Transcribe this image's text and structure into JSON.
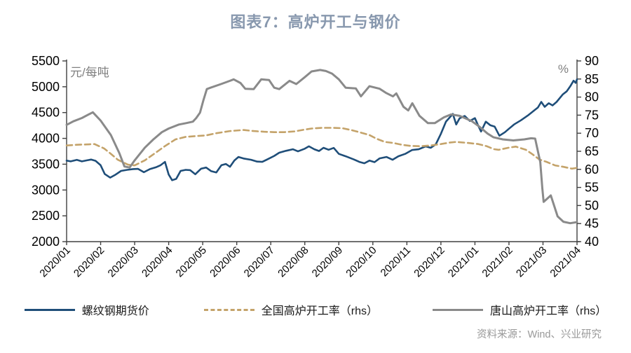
{
  "title": "图表7：高炉开工与钢价",
  "source": "资料来源：Wind、兴业研究",
  "colors": {
    "title": "#8898AE",
    "rebar": "#1F4E79",
    "national": "#C4A36A",
    "tangshan": "#8A8A8A",
    "axis": "#404040",
    "tick_text": "#000000",
    "unit_text": "#808080",
    "source_text": "#999999"
  },
  "chart_data": {
    "type": "line",
    "title": "图表7：高炉开工与钢价",
    "legend_position": "bottom",
    "grid": false,
    "x_axis": {
      "tick_labels": [
        "2020/01",
        "2020/02",
        "2020/03",
        "2020/04",
        "2020/05",
        "2020/06",
        "2020/07",
        "2020/08",
        "2020/09",
        "2020/10",
        "2020/11",
        "2020/12",
        "2021/01",
        "2021/02",
        "2021/03",
        "2021/04"
      ],
      "unit_months": true
    },
    "left_axis": {
      "label": "元/每吨",
      "min": 2000,
      "max": 5500,
      "step": 500,
      "ticks": [
        2000,
        2500,
        3000,
        3500,
        4000,
        4500,
        5000,
        5500
      ]
    },
    "right_axis": {
      "label": "%",
      "min": 40,
      "max": 90,
      "step": 5,
      "ticks": [
        40,
        45,
        50,
        55,
        60,
        65,
        70,
        75,
        80,
        85,
        90
      ]
    },
    "series": [
      {
        "name": "螺纹钢期货价",
        "axis": "left",
        "style": "solid",
        "color": "#1F4E79",
        "width": 2.6,
        "points": [
          [
            0,
            3570
          ],
          [
            0.12,
            3555
          ],
          [
            0.3,
            3585
          ],
          [
            0.45,
            3555
          ],
          [
            0.6,
            3575
          ],
          [
            0.72,
            3590
          ],
          [
            0.85,
            3565
          ],
          [
            1.0,
            3480
          ],
          [
            1.12,
            3310
          ],
          [
            1.28,
            3240
          ],
          [
            1.42,
            3290
          ],
          [
            1.6,
            3370
          ],
          [
            1.78,
            3390
          ],
          [
            1.95,
            3405
          ],
          [
            2.1,
            3410
          ],
          [
            2.27,
            3345
          ],
          [
            2.45,
            3405
          ],
          [
            2.62,
            3440
          ],
          [
            2.76,
            3480
          ],
          [
            2.89,
            3545
          ],
          [
            3.0,
            3300
          ],
          [
            3.1,
            3190
          ],
          [
            3.22,
            3215
          ],
          [
            3.35,
            3370
          ],
          [
            3.5,
            3390
          ],
          [
            3.63,
            3385
          ],
          [
            3.78,
            3305
          ],
          [
            3.95,
            3412
          ],
          [
            4.1,
            3435
          ],
          [
            4.25,
            3365
          ],
          [
            4.4,
            3340
          ],
          [
            4.55,
            3480
          ],
          [
            4.68,
            3505
          ],
          [
            4.8,
            3450
          ],
          [
            4.93,
            3572
          ],
          [
            5.05,
            3640
          ],
          [
            5.2,
            3610
          ],
          [
            5.42,
            3586
          ],
          [
            5.6,
            3550
          ],
          [
            5.75,
            3545
          ],
          [
            5.92,
            3600
          ],
          [
            6.1,
            3660
          ],
          [
            6.25,
            3723
          ],
          [
            6.45,
            3760
          ],
          [
            6.65,
            3790
          ],
          [
            6.8,
            3748
          ],
          [
            7.0,
            3800
          ],
          [
            7.12,
            3846
          ],
          [
            7.28,
            3790
          ],
          [
            7.42,
            3755
          ],
          [
            7.55,
            3818
          ],
          [
            7.7,
            3780
          ],
          [
            7.85,
            3815
          ],
          [
            8.0,
            3700
          ],
          [
            8.2,
            3654
          ],
          [
            8.45,
            3590
          ],
          [
            8.6,
            3545
          ],
          [
            8.75,
            3518
          ],
          [
            8.9,
            3570
          ],
          [
            9.05,
            3540
          ],
          [
            9.2,
            3613
          ],
          [
            9.4,
            3640
          ],
          [
            9.58,
            3586
          ],
          [
            9.75,
            3654
          ],
          [
            9.95,
            3700
          ],
          [
            10.15,
            3775
          ],
          [
            10.35,
            3790
          ],
          [
            10.55,
            3845
          ],
          [
            10.7,
            3818
          ],
          [
            10.85,
            3885
          ],
          [
            11.0,
            4090
          ],
          [
            11.15,
            4325
          ],
          [
            11.35,
            4475
          ],
          [
            11.45,
            4270
          ],
          [
            11.55,
            4390
          ],
          [
            11.7,
            4434
          ],
          [
            11.85,
            4338
          ],
          [
            12.0,
            4392
          ],
          [
            12.08,
            4270
          ],
          [
            12.18,
            4133
          ],
          [
            12.32,
            4324
          ],
          [
            12.45,
            4256
          ],
          [
            12.58,
            4229
          ],
          [
            12.72,
            4051
          ],
          [
            12.88,
            4119
          ],
          [
            13.0,
            4187
          ],
          [
            13.15,
            4270
          ],
          [
            13.35,
            4350
          ],
          [
            13.55,
            4440
          ],
          [
            13.72,
            4530
          ],
          [
            13.85,
            4598
          ],
          [
            13.95,
            4707
          ],
          [
            14.05,
            4611
          ],
          [
            14.17,
            4680
          ],
          [
            14.28,
            4639
          ],
          [
            14.4,
            4707
          ],
          [
            14.58,
            4850
          ],
          [
            14.7,
            4912
          ],
          [
            14.8,
            5008
          ],
          [
            14.9,
            5117
          ],
          [
            14.96,
            5076
          ],
          [
            15.0,
            5145
          ]
        ]
      },
      {
        "name": "全国高炉开工率（rhs）",
        "axis": "right",
        "style": "dashed",
        "color": "#C4A36A",
        "width": 2.6,
        "points": [
          [
            0,
            66.6
          ],
          [
            0.3,
            66.8
          ],
          [
            0.6,
            66.9
          ],
          [
            0.82,
            67.0
          ],
          [
            1.1,
            65.8
          ],
          [
            1.3,
            64.3
          ],
          [
            1.5,
            62.7
          ],
          [
            1.8,
            61.3
          ],
          [
            2.0,
            61.1
          ],
          [
            2.3,
            62.5
          ],
          [
            2.6,
            64.5
          ],
          [
            2.9,
            66.5
          ],
          [
            3.2,
            68.3
          ],
          [
            3.5,
            69.0
          ],
          [
            3.8,
            69.2
          ],
          [
            4.1,
            69.4
          ],
          [
            4.4,
            70.0
          ],
          [
            4.8,
            70.6
          ],
          [
            5.2,
            70.9
          ],
          [
            5.5,
            70.6
          ],
          [
            5.8,
            70.4
          ],
          [
            6.1,
            70.3
          ],
          [
            6.4,
            70.3
          ],
          [
            6.7,
            70.5
          ],
          [
            7.0,
            71.0
          ],
          [
            7.2,
            71.3
          ],
          [
            7.5,
            71.5
          ],
          [
            7.8,
            71.5
          ],
          [
            8.1,
            71.4
          ],
          [
            8.4,
            70.8
          ],
          [
            8.6,
            70.3
          ],
          [
            8.9,
            69.5
          ],
          [
            9.1,
            68.5
          ],
          [
            9.35,
            67.6
          ],
          [
            9.6,
            67.3
          ],
          [
            9.85,
            66.8
          ],
          [
            10.1,
            66.5
          ],
          [
            10.4,
            66.4
          ],
          [
            10.7,
            66.6
          ],
          [
            11.0,
            67.0
          ],
          [
            11.25,
            67.4
          ],
          [
            11.45,
            67.6
          ],
          [
            11.8,
            67.3
          ],
          [
            12.1,
            67.0
          ],
          [
            12.35,
            66.4
          ],
          [
            12.55,
            65.6
          ],
          [
            12.7,
            65.4
          ],
          [
            13.0,
            66.0
          ],
          [
            13.2,
            66.3
          ],
          [
            13.5,
            65.4
          ],
          [
            13.7,
            64.1
          ],
          [
            13.9,
            62.7
          ],
          [
            14.1,
            62.1
          ],
          [
            14.35,
            61.1
          ],
          [
            14.6,
            60.7
          ],
          [
            14.85,
            60.2
          ],
          [
            15.0,
            60.4
          ]
        ]
      },
      {
        "name": "唐山高炉开工率（rhs）",
        "axis": "right",
        "style": "solid",
        "color": "#8A8A8A",
        "width": 3,
        "points": [
          [
            0,
            72.3
          ],
          [
            0.2,
            73.3
          ],
          [
            0.45,
            74.2
          ],
          [
            0.77,
            75.8
          ],
          [
            1.0,
            73.5
          ],
          [
            1.3,
            69.5
          ],
          [
            1.55,
            64.5
          ],
          [
            1.7,
            60.8
          ],
          [
            1.85,
            60.5
          ],
          [
            2.0,
            62.5
          ],
          [
            2.3,
            66.0
          ],
          [
            2.55,
            68.3
          ],
          [
            2.8,
            70.3
          ],
          [
            3.0,
            71.3
          ],
          [
            3.3,
            72.4
          ],
          [
            3.51,
            72.8
          ],
          [
            3.71,
            73.2
          ],
          [
            3.81,
            74.2
          ],
          [
            3.92,
            75.7
          ],
          [
            4.02,
            79.1
          ],
          [
            4.12,
            82.2
          ],
          [
            4.23,
            82.6
          ],
          [
            4.54,
            83.6
          ],
          [
            4.8,
            84.5
          ],
          [
            4.91,
            84.9
          ],
          [
            5.11,
            83.9
          ],
          [
            5.25,
            82.3
          ],
          [
            5.5,
            82.2
          ],
          [
            5.72,
            84.9
          ],
          [
            5.95,
            84.7
          ],
          [
            6.1,
            82.6
          ],
          [
            6.25,
            82.2
          ],
          [
            6.55,
            84.5
          ],
          [
            6.75,
            83.6
          ],
          [
            7.0,
            85.5
          ],
          [
            7.2,
            87.1
          ],
          [
            7.45,
            87.5
          ],
          [
            7.62,
            87.2
          ],
          [
            7.8,
            86.5
          ],
          [
            8.0,
            84.9
          ],
          [
            8.2,
            82.6
          ],
          [
            8.5,
            82.4
          ],
          [
            8.65,
            80.2
          ],
          [
            8.9,
            83.0
          ],
          [
            9.2,
            82.3
          ],
          [
            9.38,
            81.2
          ],
          [
            9.59,
            80.2
          ],
          [
            9.69,
            81.0
          ],
          [
            9.9,
            77.3
          ],
          [
            10.04,
            76.3
          ],
          [
            10.16,
            78.3
          ],
          [
            10.37,
            74.8
          ],
          [
            10.62,
            72.8
          ],
          [
            10.82,
            72.8
          ],
          [
            11.09,
            74.4
          ],
          [
            11.3,
            75.2
          ],
          [
            11.55,
            74.8
          ],
          [
            11.9,
            73.4
          ],
          [
            12.12,
            71.9
          ],
          [
            12.37,
            69.9
          ],
          [
            12.54,
            68.9
          ],
          [
            12.82,
            68.3
          ],
          [
            13.13,
            68.0
          ],
          [
            13.45,
            68.3
          ],
          [
            13.65,
            68.6
          ],
          [
            13.77,
            68.5
          ],
          [
            13.92,
            62.0
          ],
          [
            13.98,
            54.8
          ],
          [
            14.02,
            51.0
          ],
          [
            14.23,
            52.8
          ],
          [
            14.43,
            47.0
          ],
          [
            14.6,
            45.5
          ],
          [
            14.8,
            45.1
          ],
          [
            15.0,
            45.4
          ]
        ]
      }
    ]
  }
}
